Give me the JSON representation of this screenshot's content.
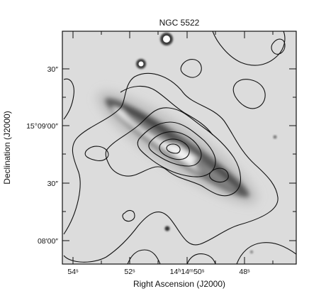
{
  "title": "NGC 5522",
  "xlabel": "Right Ascension (J2000)",
  "ylabel": "Declination (J2000)",
  "xticks": [
    {
      "label": "54ˢ"
    },
    {
      "label": "52ˢ"
    },
    {
      "label": "14ʰ14ᵐ50ˢ"
    },
    {
      "label": "48ˢ"
    }
  ],
  "yticks": [
    {
      "label": "30″"
    },
    {
      "label": "15°09′00″"
    },
    {
      "label": "30″"
    },
    {
      "label": "08′00″"
    }
  ],
  "colors": {
    "background": "#dcdcdc",
    "galaxy": "#4a4a4a",
    "contours": "#111111"
  }
}
